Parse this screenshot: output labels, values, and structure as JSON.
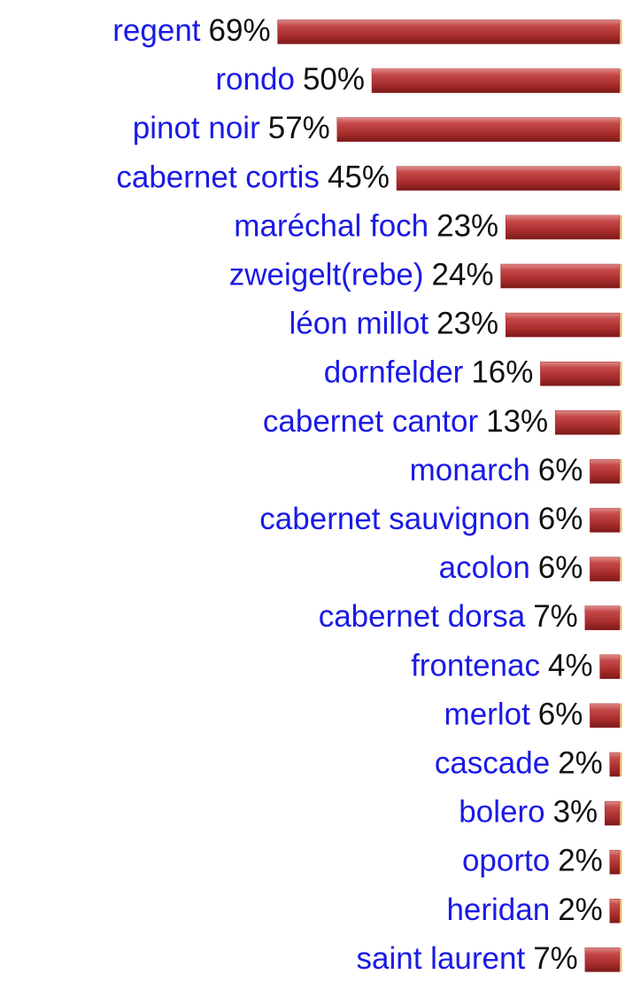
{
  "chart_data": {
    "type": "bar",
    "orientation": "horizontal",
    "categories": [
      "regent",
      "rondo",
      "pinot noir",
      "cabernet cortis",
      "maréchal foch",
      "zweigelt(rebe)",
      "léon millot",
      "dornfelder",
      "cabernet cantor",
      "monarch",
      "cabernet sauvignon",
      "acolon",
      "cabernet dorsa",
      "frontenac",
      "merlot",
      "cascade",
      "bolero",
      "oporto",
      "heridan",
      "saint laurent"
    ],
    "values": [
      69,
      50,
      57,
      45,
      23,
      24,
      23,
      16,
      13,
      6,
      6,
      6,
      7,
      4,
      6,
      2,
      3,
      2,
      2,
      7
    ],
    "value_labels": [
      "69%",
      "50%",
      "57%",
      "45%",
      "23%",
      "24%",
      "23%",
      "16%",
      "13%",
      "6%",
      "6%",
      "6%",
      "7%",
      "4%",
      "6%",
      "2%",
      "3%",
      "2%",
      "2%",
      "7%"
    ],
    "color": "#a52a2a",
    "label_color": "#1a1ae6"
  }
}
